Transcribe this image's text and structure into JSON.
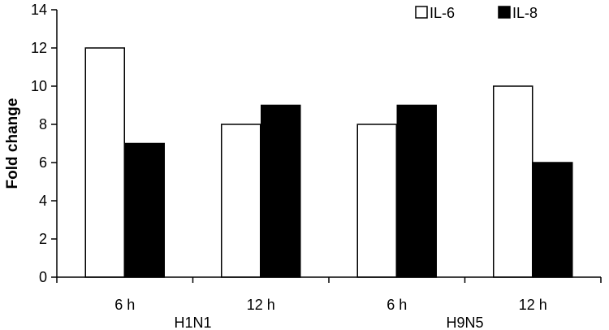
{
  "chart_data": {
    "type": "bar",
    "categories": [
      "6 h",
      "12 h",
      "6 h",
      "12 h"
    ],
    "groups": [
      "H1N1",
      "H9N5"
    ],
    "series": [
      {
        "name": "IL-6",
        "color": "#ffffff",
        "values": [
          12,
          8,
          8,
          10
        ]
      },
      {
        "name": "IL-8",
        "color": "#000000",
        "values": [
          7,
          9,
          9,
          6
        ]
      }
    ],
    "ylabel": "Fold change",
    "ylim": [
      0,
      14
    ],
    "yticks": [
      0,
      2,
      4,
      6,
      8,
      10,
      12,
      14
    ],
    "legend_position": "top-right",
    "grid": false
  }
}
